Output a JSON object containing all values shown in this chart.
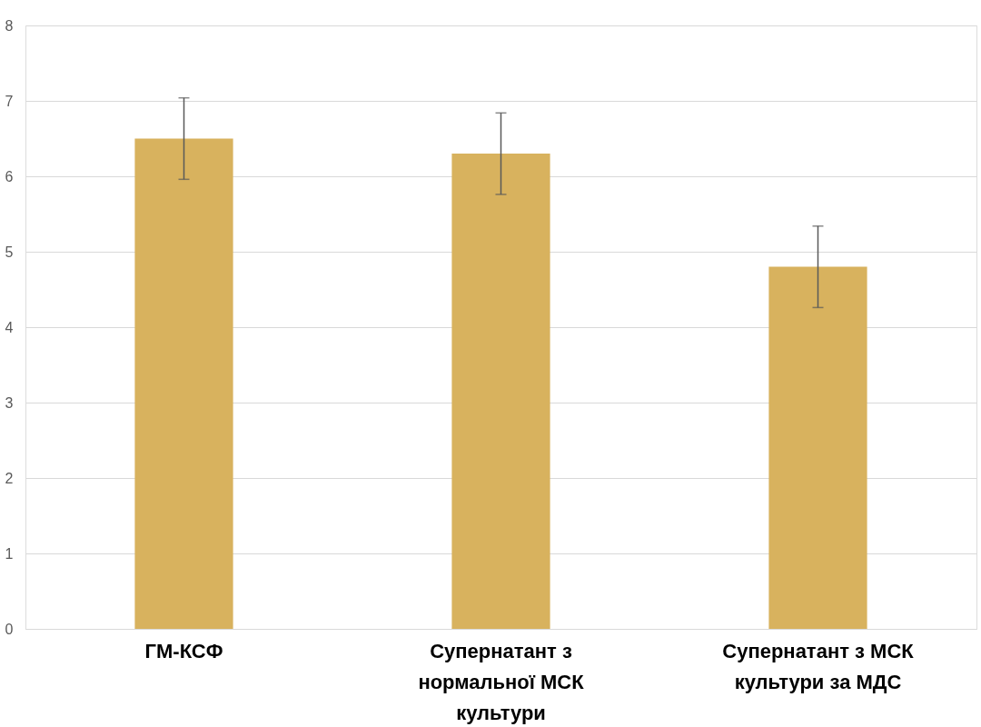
{
  "chart_data": {
    "type": "bar",
    "categories": [
      "ГМ-КСФ",
      "Супернатант з нормальної МСК культури",
      "Супернатант з  МСК культури за МДС"
    ],
    "values": [
      6.5,
      6.3,
      4.8
    ],
    "errors": [
      0.54,
      0.54,
      0.54
    ],
    "color": "#d8b25e",
    "ylim": [
      0,
      8
    ],
    "yticks": [
      0,
      1,
      2,
      3,
      4,
      5,
      6,
      7,
      8
    ],
    "grid": "y"
  }
}
